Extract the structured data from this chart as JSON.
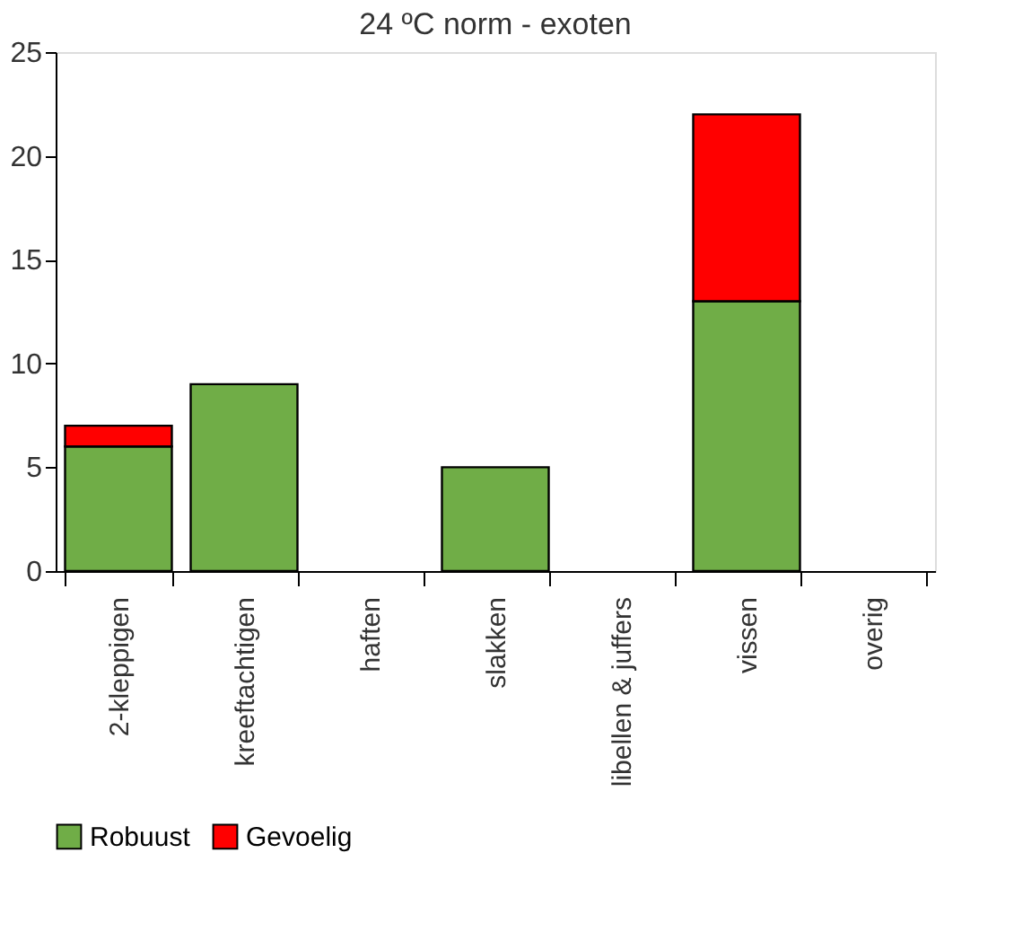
{
  "chart_data": {
    "type": "bar",
    "title": "24 ºC norm - exoten",
    "stacked": true,
    "categories": [
      "2-kleppigen",
      "kreeftachtigen",
      "haften",
      "slakken",
      "libellen & juffers",
      "vissen",
      "overig"
    ],
    "series": [
      {
        "name": "Robuust",
        "color": "#70ad47",
        "values": [
          6,
          9,
          0,
          5,
          0,
          13,
          0
        ]
      },
      {
        "name": "Gevoelig",
        "color": "#ff0000",
        "values": [
          1,
          0,
          0,
          0,
          0,
          9,
          0
        ]
      }
    ],
    "ylim": [
      0,
      25
    ],
    "yticks": [
      0,
      5,
      10,
      15,
      20,
      25
    ],
    "grid": false,
    "legend": "bottom"
  }
}
